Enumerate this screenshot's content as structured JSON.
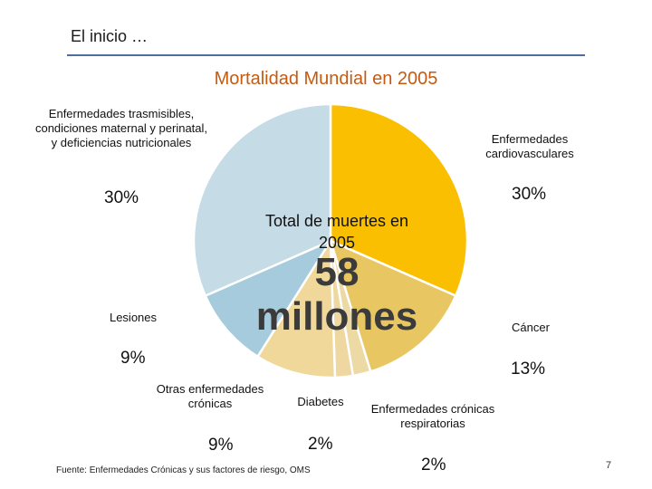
{
  "slide": {
    "heading": "El inicio …",
    "source": "Fuente: Enfermedades Crónicas y sus factores de riesgo, OMS",
    "page_number": "7"
  },
  "center": {
    "line1": "Total de muertes en",
    "line2": "2005",
    "big1": "58",
    "big2": "millones"
  },
  "colors": {
    "heading_rule": "#4d6f9f",
    "title": "#c55a11"
  },
  "chart_data": {
    "type": "pie",
    "title": "Mortalidad Mundial en 2005",
    "start_angle_deg": 0,
    "direction": "clockwise",
    "slices": [
      {
        "label": "Enfermedades cardiovasculares",
        "value_label": "30%",
        "value": 30,
        "color": "#f9bf00"
      },
      {
        "label": "Cáncer",
        "value_label": "13%",
        "value": 13,
        "color": "#e8c763"
      },
      {
        "label": "Enfermedades crónicas respiratorias",
        "value_label": "2%",
        "value": 2,
        "color": "#ecd9a3"
      },
      {
        "label": "Diabetes",
        "value_label": "2%",
        "value": 2,
        "color": "#eed7a0"
      },
      {
        "label": "Otras enfermedades crónicas",
        "value_label": "9%",
        "value": 9,
        "color": "#f0d79a"
      },
      {
        "label": "Lesiones",
        "value_label": "9%",
        "value": 9,
        "color": "#a6cbdc"
      },
      {
        "label": "Enfermedades trasmisibles, condiciones maternal y perinatal, y deficiencias nutricionales",
        "value_label": "30%",
        "value": 30,
        "color": "#c5dbe6"
      }
    ]
  }
}
